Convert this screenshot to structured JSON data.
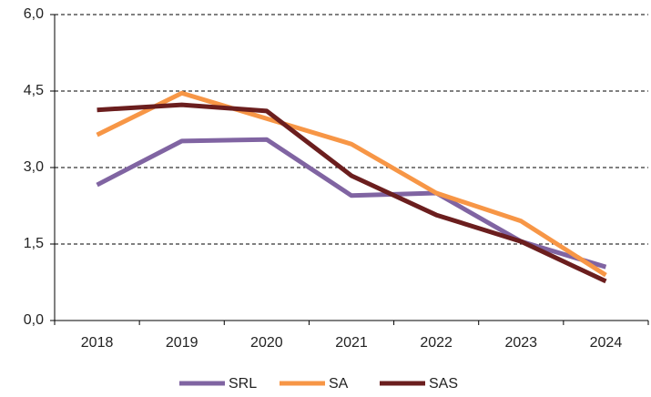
{
  "chart_data": {
    "type": "line",
    "categories": [
      "2018",
      "2019",
      "2020",
      "2021",
      "2022",
      "2023",
      "2024"
    ],
    "series": [
      {
        "name": "SRL",
        "color": "#8064a2",
        "values": [
          2.66,
          3.52,
          3.55,
          2.45,
          2.5,
          1.55,
          1.05
        ]
      },
      {
        "name": "SA",
        "color": "#f79646",
        "values": [
          3.64,
          4.46,
          3.96,
          3.46,
          2.5,
          1.95,
          0.89
        ]
      },
      {
        "name": "SAS",
        "color": "#6b1e1e",
        "values": [
          4.13,
          4.23,
          4.11,
          2.84,
          2.07,
          1.55,
          0.77
        ]
      }
    ],
    "ylim": [
      0,
      6
    ],
    "yticks": [
      {
        "value": 0,
        "label": "0,0"
      },
      {
        "value": 1.5,
        "label": "1,5"
      },
      {
        "value": 3,
        "label": "3,0"
      },
      {
        "value": 4.5,
        "label": "4,5"
      },
      {
        "value": 6,
        "label": "6,0"
      }
    ],
    "grid": true,
    "legend": "bottom"
  }
}
